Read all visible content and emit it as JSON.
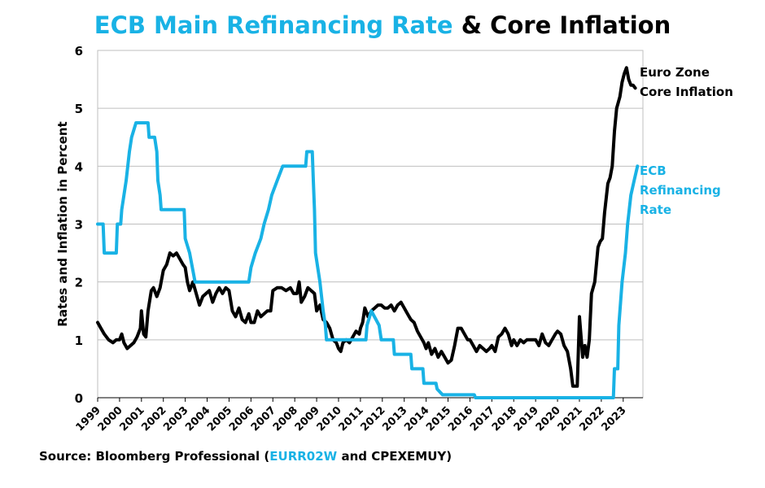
{
  "chart_data": {
    "type": "line",
    "title_part1": "ECB Main Refinancing Rate",
    "title_part2": "& Core Inflation",
    "ylabel": "Rates and Inflation in Percent",
    "xlabel": "",
    "ylim": [
      0,
      6
    ],
    "xlim": [
      1999,
      2023.9
    ],
    "y_ticks": [
      "0",
      "1",
      "2",
      "3",
      "4",
      "5",
      "6"
    ],
    "x_ticks": [
      "1999",
      "2000",
      "2001",
      "2002",
      "2003",
      "2004",
      "2005",
      "2006",
      "2007",
      "2008",
      "2009",
      "2010",
      "2011",
      "2012",
      "2013",
      "2014",
      "2015",
      "2016",
      "2017",
      "2018",
      "2019",
      "2020",
      "2021",
      "2022",
      "2023"
    ],
    "grid": "horizontal",
    "series": [
      {
        "name": "Euro Zone Core Inflation",
        "label_lines": [
          "Euro Zone",
          "Core Inflation"
        ],
        "color": "#000000",
        "points": [
          [
            1999.0,
            1.3
          ],
          [
            1999.15,
            1.2
          ],
          [
            1999.3,
            1.1
          ],
          [
            1999.5,
            1.0
          ],
          [
            1999.7,
            0.95
          ],
          [
            1999.85,
            1.0
          ],
          [
            2000.0,
            1.0
          ],
          [
            2000.1,
            1.1
          ],
          [
            2000.2,
            0.95
          ],
          [
            2000.35,
            0.85
          ],
          [
            2000.5,
            0.9
          ],
          [
            2000.65,
            0.95
          ],
          [
            2000.8,
            1.05
          ],
          [
            2000.95,
            1.2
          ],
          [
            2001.0,
            1.5
          ],
          [
            2001.1,
            1.1
          ],
          [
            2001.2,
            1.05
          ],
          [
            2001.3,
            1.5
          ],
          [
            2001.45,
            1.85
          ],
          [
            2001.55,
            1.9
          ],
          [
            2001.7,
            1.75
          ],
          [
            2001.85,
            1.9
          ],
          [
            2002.0,
            2.2
          ],
          [
            2002.15,
            2.3
          ],
          [
            2002.3,
            2.5
          ],
          [
            2002.45,
            2.45
          ],
          [
            2002.6,
            2.5
          ],
          [
            2002.75,
            2.4
          ],
          [
            2002.9,
            2.3
          ],
          [
            2003.0,
            2.25
          ],
          [
            2003.1,
            2.0
          ],
          [
            2003.2,
            1.85
          ],
          [
            2003.35,
            2.0
          ],
          [
            2003.5,
            1.8
          ],
          [
            2003.65,
            1.6
          ],
          [
            2003.8,
            1.75
          ],
          [
            2003.95,
            1.8
          ],
          [
            2004.1,
            1.85
          ],
          [
            2004.25,
            1.65
          ],
          [
            2004.4,
            1.8
          ],
          [
            2004.55,
            1.9
          ],
          [
            2004.7,
            1.8
          ],
          [
            2004.85,
            1.9
          ],
          [
            2005.0,
            1.85
          ],
          [
            2005.15,
            1.5
          ],
          [
            2005.3,
            1.4
          ],
          [
            2005.45,
            1.55
          ],
          [
            2005.6,
            1.35
          ],
          [
            2005.75,
            1.3
          ],
          [
            2005.9,
            1.45
          ],
          [
            2006.0,
            1.3
          ],
          [
            2006.15,
            1.3
          ],
          [
            2006.3,
            1.5
          ],
          [
            2006.45,
            1.4
          ],
          [
            2006.6,
            1.45
          ],
          [
            2006.75,
            1.5
          ],
          [
            2006.9,
            1.5
          ],
          [
            2007.0,
            1.85
          ],
          [
            2007.2,
            1.9
          ],
          [
            2007.4,
            1.9
          ],
          [
            2007.6,
            1.85
          ],
          [
            2007.8,
            1.9
          ],
          [
            2007.95,
            1.8
          ],
          [
            2008.1,
            1.8
          ],
          [
            2008.2,
            2.0
          ],
          [
            2008.3,
            1.65
          ],
          [
            2008.45,
            1.75
          ],
          [
            2008.6,
            1.9
          ],
          [
            2008.75,
            1.85
          ],
          [
            2008.9,
            1.8
          ],
          [
            2009.0,
            1.5
          ],
          [
            2009.15,
            1.6
          ],
          [
            2009.3,
            1.35
          ],
          [
            2009.45,
            1.3
          ],
          [
            2009.6,
            1.2
          ],
          [
            2009.75,
            1.0
          ],
          [
            2009.9,
            0.95
          ],
          [
            2010.0,
            0.85
          ],
          [
            2010.1,
            0.8
          ],
          [
            2010.2,
            0.95
          ],
          [
            2010.35,
            1.0
          ],
          [
            2010.5,
            0.95
          ],
          [
            2010.65,
            1.05
          ],
          [
            2010.8,
            1.15
          ],
          [
            2010.95,
            1.1
          ],
          [
            2011.0,
            1.2
          ],
          [
            2011.1,
            1.3
          ],
          [
            2011.2,
            1.55
          ],
          [
            2011.35,
            1.4
          ],
          [
            2011.5,
            1.5
          ],
          [
            2011.65,
            1.55
          ],
          [
            2011.8,
            1.6
          ],
          [
            2011.95,
            1.6
          ],
          [
            2012.1,
            1.55
          ],
          [
            2012.25,
            1.55
          ],
          [
            2012.4,
            1.6
          ],
          [
            2012.55,
            1.5
          ],
          [
            2012.7,
            1.6
          ],
          [
            2012.85,
            1.65
          ],
          [
            2013.0,
            1.55
          ],
          [
            2013.15,
            1.45
          ],
          [
            2013.3,
            1.35
          ],
          [
            2013.45,
            1.3
          ],
          [
            2013.6,
            1.15
          ],
          [
            2013.75,
            1.05
          ],
          [
            2013.9,
            0.95
          ],
          [
            2014.0,
            0.85
          ],
          [
            2014.1,
            0.95
          ],
          [
            2014.25,
            0.75
          ],
          [
            2014.4,
            0.85
          ],
          [
            2014.55,
            0.7
          ],
          [
            2014.7,
            0.8
          ],
          [
            2014.85,
            0.7
          ],
          [
            2015.0,
            0.6
          ],
          [
            2015.15,
            0.65
          ],
          [
            2015.3,
            0.9
          ],
          [
            2015.45,
            1.2
          ],
          [
            2015.6,
            1.2
          ],
          [
            2015.75,
            1.1
          ],
          [
            2015.9,
            1.0
          ],
          [
            2016.0,
            1.0
          ],
          [
            2016.15,
            0.9
          ],
          [
            2016.3,
            0.8
          ],
          [
            2016.45,
            0.9
          ],
          [
            2016.6,
            0.85
          ],
          [
            2016.75,
            0.8
          ],
          [
            2016.9,
            0.85
          ],
          [
            2017.0,
            0.9
          ],
          [
            2017.15,
            0.8
          ],
          [
            2017.3,
            1.05
          ],
          [
            2017.45,
            1.1
          ],
          [
            2017.6,
            1.2
          ],
          [
            2017.75,
            1.1
          ],
          [
            2017.9,
            0.9
          ],
          [
            2018.0,
            1.0
          ],
          [
            2018.15,
            0.9
          ],
          [
            2018.3,
            1.0
          ],
          [
            2018.45,
            0.95
          ],
          [
            2018.6,
            1.0
          ],
          [
            2018.75,
            1.0
          ],
          [
            2018.9,
            1.0
          ],
          [
            2019.0,
            1.0
          ],
          [
            2019.15,
            0.9
          ],
          [
            2019.3,
            1.1
          ],
          [
            2019.45,
            0.95
          ],
          [
            2019.6,
            0.9
          ],
          [
            2019.75,
            1.0
          ],
          [
            2019.9,
            1.1
          ],
          [
            2020.0,
            1.15
          ],
          [
            2020.15,
            1.1
          ],
          [
            2020.3,
            0.9
          ],
          [
            2020.45,
            0.8
          ],
          [
            2020.6,
            0.5
          ],
          [
            2020.7,
            0.2
          ],
          [
            2020.8,
            0.2
          ],
          [
            2020.9,
            0.2
          ],
          [
            2021.0,
            1.4
          ],
          [
            2021.15,
            0.7
          ],
          [
            2021.25,
            0.9
          ],
          [
            2021.35,
            0.7
          ],
          [
            2021.45,
            1.0
          ],
          [
            2021.55,
            1.8
          ],
          [
            2021.7,
            2.0
          ],
          [
            2021.85,
            2.6
          ],
          [
            2021.95,
            2.7
          ],
          [
            2022.05,
            2.75
          ],
          [
            2022.15,
            3.2
          ],
          [
            2022.3,
            3.7
          ],
          [
            2022.4,
            3.8
          ],
          [
            2022.5,
            4.0
          ],
          [
            2022.6,
            4.6
          ],
          [
            2022.7,
            5.0
          ],
          [
            2022.85,
            5.2
          ],
          [
            2022.95,
            5.45
          ],
          [
            2023.05,
            5.6
          ],
          [
            2023.15,
            5.7
          ],
          [
            2023.25,
            5.5
          ],
          [
            2023.35,
            5.4
          ],
          [
            2023.45,
            5.4
          ],
          [
            2023.55,
            5.35
          ]
        ]
      },
      {
        "name": "ECB Refinancing Rate",
        "label_lines": [
          "ECB",
          "Refinancing",
          "Rate"
        ],
        "color": "#19b2e5",
        "points": [
          [
            1999.0,
            3.0
          ],
          [
            1999.25,
            3.0
          ],
          [
            1999.3,
            2.5
          ],
          [
            1999.85,
            2.5
          ],
          [
            1999.9,
            3.0
          ],
          [
            2000.05,
            3.0
          ],
          [
            2000.1,
            3.25
          ],
          [
            2000.2,
            3.5
          ],
          [
            2000.3,
            3.75
          ],
          [
            2000.45,
            4.25
          ],
          [
            2000.55,
            4.5
          ],
          [
            2000.75,
            4.75
          ],
          [
            2001.3,
            4.75
          ],
          [
            2001.35,
            4.5
          ],
          [
            2001.6,
            4.5
          ],
          [
            2001.7,
            4.25
          ],
          [
            2001.75,
            3.75
          ],
          [
            2001.85,
            3.5
          ],
          [
            2001.9,
            3.25
          ],
          [
            2002.95,
            3.25
          ],
          [
            2003.0,
            2.75
          ],
          [
            2003.2,
            2.5
          ],
          [
            2003.45,
            2.0
          ],
          [
            2005.9,
            2.0
          ],
          [
            2006.0,
            2.25
          ],
          [
            2006.2,
            2.5
          ],
          [
            2006.45,
            2.75
          ],
          [
            2006.6,
            3.0
          ],
          [
            2006.8,
            3.25
          ],
          [
            2006.95,
            3.5
          ],
          [
            2007.2,
            3.75
          ],
          [
            2007.45,
            4.0
          ],
          [
            2008.5,
            4.0
          ],
          [
            2008.55,
            4.25
          ],
          [
            2008.8,
            4.25
          ],
          [
            2008.85,
            3.75
          ],
          [
            2008.9,
            3.25
          ],
          [
            2008.95,
            2.5
          ],
          [
            2009.15,
            2.0
          ],
          [
            2009.3,
            1.5
          ],
          [
            2009.4,
            1.25
          ],
          [
            2009.45,
            1.0
          ],
          [
            2011.25,
            1.0
          ],
          [
            2011.3,
            1.25
          ],
          [
            2011.5,
            1.5
          ],
          [
            2011.85,
            1.25
          ],
          [
            2011.95,
            1.0
          ],
          [
            2012.5,
            1.0
          ],
          [
            2012.55,
            0.75
          ],
          [
            2013.3,
            0.75
          ],
          [
            2013.35,
            0.5
          ],
          [
            2013.85,
            0.5
          ],
          [
            2013.9,
            0.25
          ],
          [
            2014.45,
            0.25
          ],
          [
            2014.5,
            0.15
          ],
          [
            2014.75,
            0.05
          ],
          [
            2016.2,
            0.05
          ],
          [
            2016.25,
            0.0
          ],
          [
            2022.55,
            0.0
          ],
          [
            2022.6,
            0.5
          ],
          [
            2022.75,
            0.5
          ],
          [
            2022.8,
            1.25
          ],
          [
            2022.95,
            2.0
          ],
          [
            2023.1,
            2.5
          ],
          [
            2023.2,
            3.0
          ],
          [
            2023.35,
            3.5
          ],
          [
            2023.5,
            3.75
          ],
          [
            2023.65,
            4.0
          ]
        ]
      }
    ]
  },
  "source": {
    "prefix": "Source: Bloomberg Professional (",
    "code1": "EURR02W",
    "middle": " and ",
    "code2": "CPEXEMUY",
    "suffix": ")"
  },
  "colors": {
    "accent": "#19b2e5",
    "dark": "#000000",
    "grid": "#bfbfbf"
  }
}
